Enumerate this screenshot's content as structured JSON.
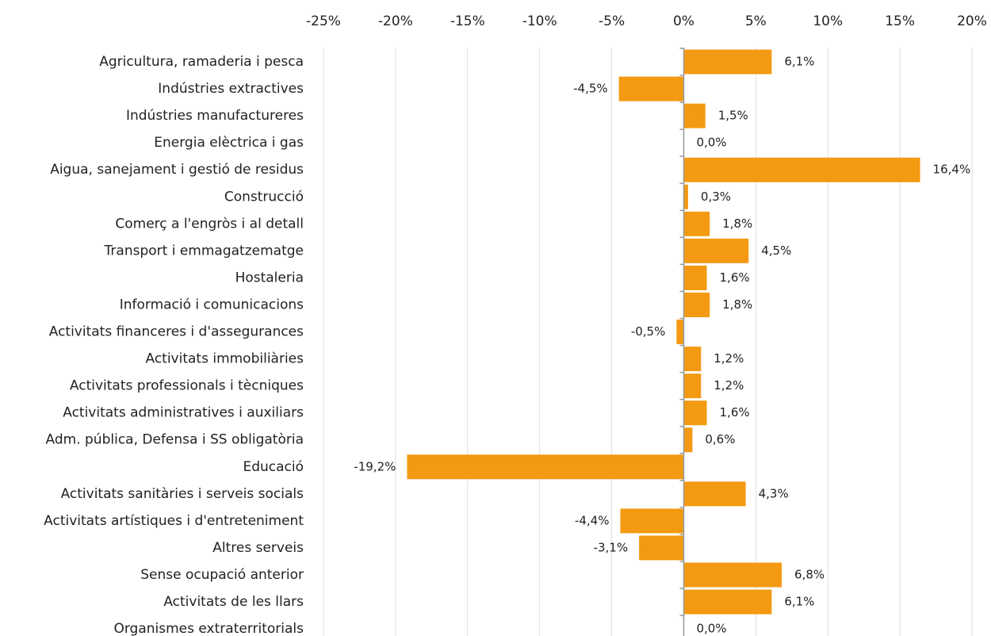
{
  "chart_data": {
    "type": "bar",
    "orientation": "horizontal",
    "categories": [
      "Agricultura, ramaderia i pesca",
      "Indústries extractives",
      "Indústries manufactureres",
      "Energia elèctrica i gas",
      "Aigua, sanejament i gestió de residus",
      "Construcció",
      "Comerç a l'engròs i al detall",
      "Transport i emmagatzematge",
      "Hostaleria",
      "Informació i comunicacions",
      "Activitats financeres i d'assegurances",
      "Activitats immobiliàries",
      "Activitats professionals i tècniques",
      "Activitats administratives i auxiliars",
      "Adm. pública, Defensa i SS obligatòria",
      "Educació",
      "Activitats sanitàries i serveis socials",
      "Activitats artístiques i d'entreteniment",
      "Altres serveis",
      "Sense ocupació anterior",
      "Activitats de les llars",
      "Organismes extraterritorials"
    ],
    "values": [
      6.1,
      -4.5,
      1.5,
      0.0,
      16.4,
      0.3,
      1.8,
      4.5,
      1.6,
      1.8,
      -0.5,
      1.2,
      1.2,
      1.6,
      0.6,
      -19.2,
      4.3,
      -4.4,
      -3.1,
      6.8,
      6.1,
      0.0
    ],
    "value_labels": [
      "6,1%",
      "-4,5%",
      "1,5%",
      "0,0%",
      "16,4%",
      "0,3%",
      "1,8%",
      "4,5%",
      "1,6%",
      "1,8%",
      "-0,5%",
      "1,2%",
      "1,2%",
      "1,6%",
      "0,6%",
      "-19,2%",
      "4,3%",
      "-4,4%",
      "-3,1%",
      "6,8%",
      "6,1%",
      "0,0%"
    ],
    "color": "#f39a12",
    "xlim": [
      -25,
      20
    ],
    "xticks": [
      {
        "value": -25,
        "label": "-25%"
      },
      {
        "value": -20,
        "label": "-20%"
      },
      {
        "value": -15,
        "label": "-15%"
      },
      {
        "value": -10,
        "label": "-10%"
      },
      {
        "value": -5,
        "label": "-5%"
      },
      {
        "value": 0,
        "label": "0%"
      },
      {
        "value": 5,
        "label": "5%"
      },
      {
        "value": 10,
        "label": "10%"
      },
      {
        "value": 15,
        "label": "15%"
      },
      {
        "value": 20,
        "label": "20%"
      }
    ],
    "grid": true
  }
}
